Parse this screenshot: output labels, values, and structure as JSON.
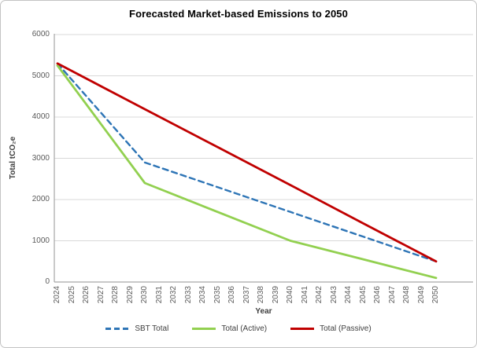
{
  "chart": {
    "title": "Forecasted Market-based Emissions to 2050"
  },
  "chart_data": {
    "type": "line",
    "title": "Forecasted Market-based Emissions to 2050",
    "xlabel": "Year",
    "ylabel": "Total tCO₂e",
    "ylim": [
      0,
      6000
    ],
    "y_ticks": [
      0,
      1000,
      2000,
      3000,
      4000,
      5000,
      6000
    ],
    "x_range": [
      2024,
      2050
    ],
    "x_tick_labels": [
      "2024",
      "2025",
      "2026",
      "2027",
      "2028",
      "2029",
      "2030",
      "2031",
      "2032",
      "2033",
      "2034",
      "2035",
      "2036",
      "2037",
      "2038",
      "2039",
      "2040",
      "2041",
      "2042",
      "2043",
      "2044",
      "2045",
      "2046",
      "2047",
      "2048",
      "2049",
      "2050"
    ],
    "x": [
      2024,
      2030,
      2035,
      2040,
      2045,
      2050
    ],
    "series": [
      {
        "name": "SBT Total",
        "color": "#2E75B6",
        "style": "dashed",
        "values": [
          5300,
          2900,
          2300,
          1700,
          1100,
          500
        ]
      },
      {
        "name": "Total (Active)",
        "color": "#92D050",
        "style": "solid",
        "values": [
          5250,
          2400,
          1700,
          1000,
          550,
          100
        ]
      },
      {
        "name": "Total (Passive)",
        "color": "#C00000",
        "style": "solid",
        "values": [
          5300,
          4190,
          3270,
          2350,
          1420,
          500
        ]
      }
    ],
    "legend_position": "bottom",
    "grid": "horizontal",
    "colors": {
      "gridline": "#D9D9D9",
      "axis": "#A6A6A6",
      "tick_text": "#595959",
      "axis_title_text": "#404040",
      "title_text": "#000000"
    }
  }
}
